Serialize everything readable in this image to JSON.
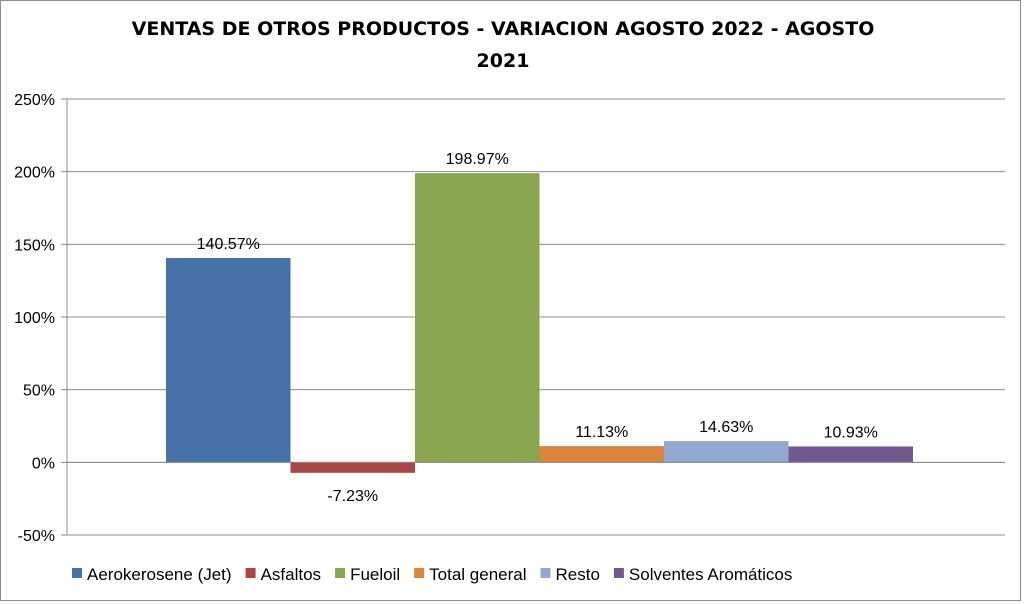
{
  "chart_data": {
    "type": "bar",
    "title_lines": [
      "VENTAS DE OTROS PRODUCTOS - VARIACION AGOSTO 2022 - AGOSTO",
      "2021"
    ],
    "title": "VENTAS DE OTROS PRODUCTOS - VARIACION AGOSTO 2022 - AGOSTO 2021",
    "xlabel": "",
    "ylabel": "",
    "ylim": [
      -50,
      250
    ],
    "yticks": [
      250,
      200,
      150,
      100,
      50,
      0,
      -50
    ],
    "ytick_labels": [
      "250%",
      "200%",
      "150%",
      "100%",
      "50%",
      "0%",
      "-50%"
    ],
    "grid": true,
    "legend_position": "bottom",
    "series": [
      {
        "name": "Aerokerosene (Jet)",
        "values": [
          140.57
        ],
        "label": "140.57%",
        "color": "#4572A7"
      },
      {
        "name": "Asfaltos",
        "values": [
          -7.23
        ],
        "label": "-7.23%",
        "color": "#AA4643"
      },
      {
        "name": "Fueloil",
        "values": [
          198.97
        ],
        "label": "198.97%",
        "color": "#89A54E"
      },
      {
        "name": "Total general",
        "values": [
          11.13
        ],
        "label": "11.13%",
        "color": "#DB843D"
      },
      {
        "name": "Resto",
        "values": [
          14.63
        ],
        "label": "14.63%",
        "color": "#93A9CF"
      },
      {
        "name": "Solventes Aromáticos",
        "values": [
          10.93
        ],
        "label": "10.93%",
        "color": "#71588F"
      }
    ]
  }
}
